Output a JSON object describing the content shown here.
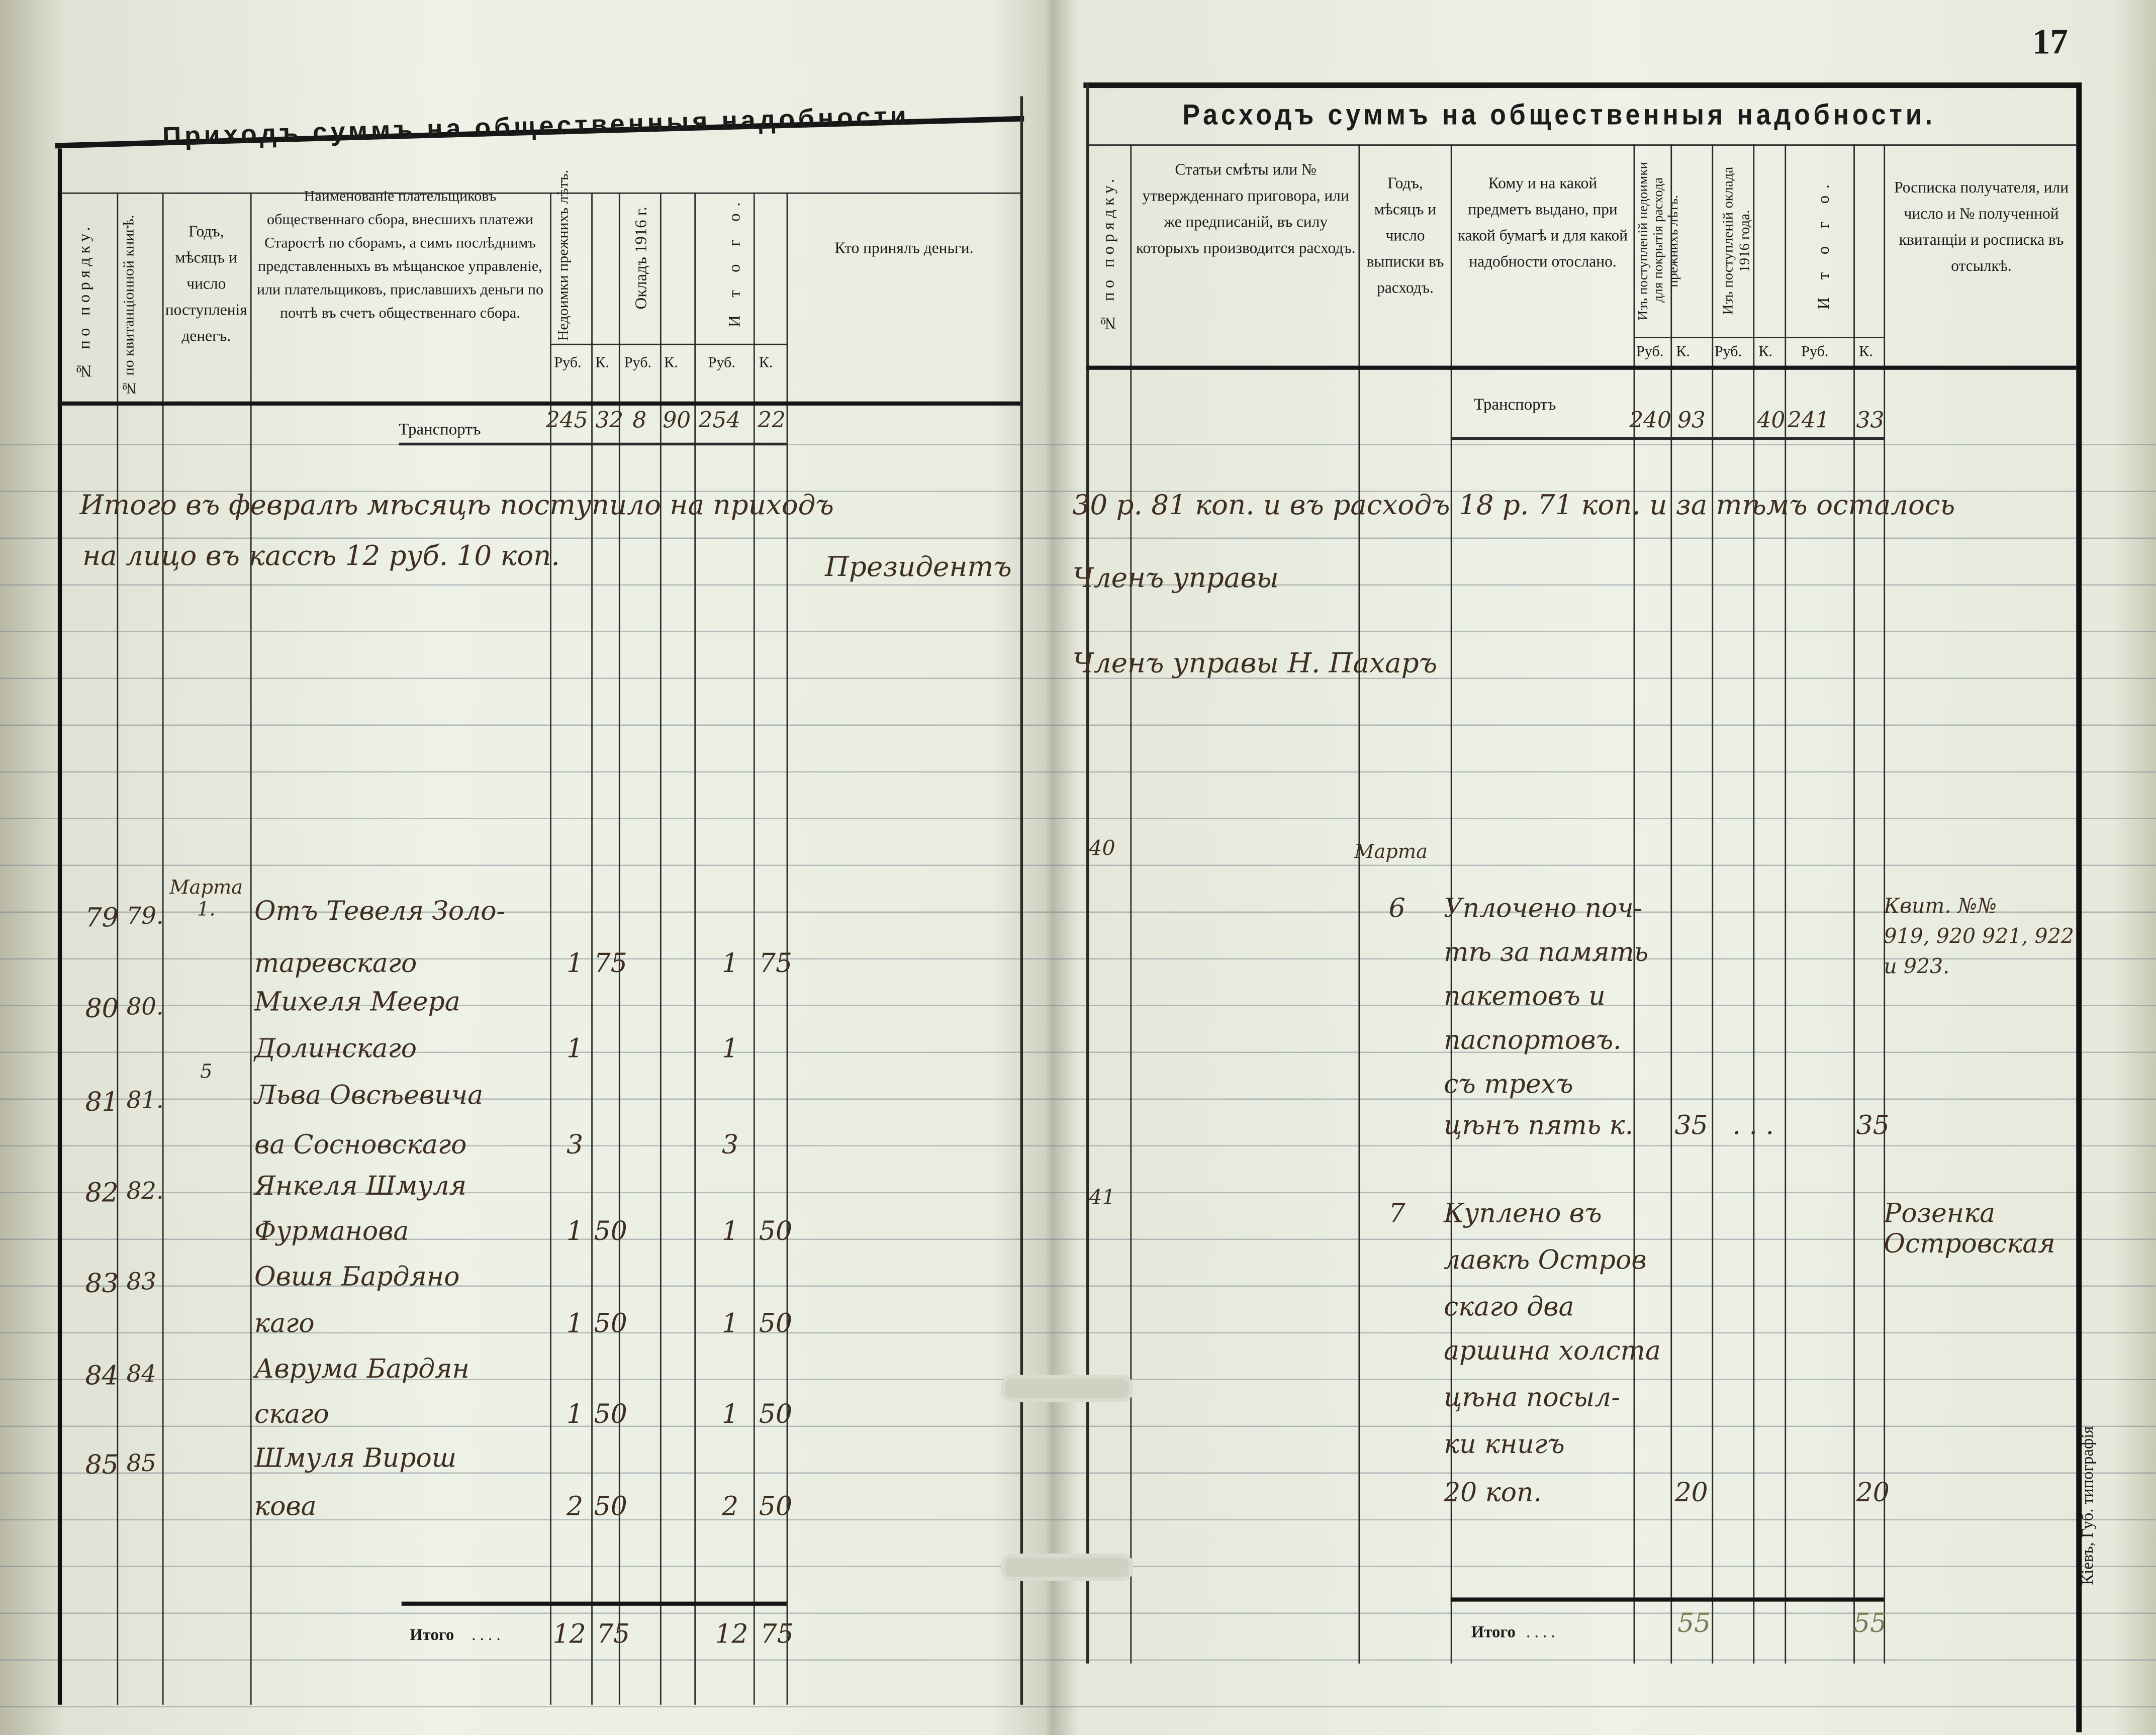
{
  "page_number": "17",
  "printer_mark": "Кіевъ, Губ. типографія",
  "income": {
    "title": "Приходъ суммъ на общественныя надобности.",
    "headers": {
      "no": "№ по порядку.",
      "receipt_no": "№ по квитанціонной книгѣ.",
      "date": "Годъ, мѣсяцъ и число поступленія денегъ.",
      "payer": "Наименованіе плательщиковъ общественнаго сбора, внесшихъ платежи Старостѣ по сборамъ, а симъ послѣднимъ представленныхъ въ мѣщанское управленіе, или плательщиковъ, приславшихъ деньги по почтѣ въ счетъ общественнаго сбора.",
      "arrears": "Недоимки прежнихъ лѣтъ.",
      "assessment": "Окладъ 1916 г.",
      "total": "И т о г о.",
      "received_by": "Кто принялъ деньги.",
      "rub": "Руб.",
      "kop": "К."
    },
    "transport": {
      "label": "Транспортъ",
      "arrears_rub": "245",
      "arrears_kop": "32",
      "assess_rub": "8",
      "assess_kop": "90",
      "total_rub": "254",
      "total_kop": "22"
    },
    "rows": [
      {
        "no": "79",
        "receipt": "79.",
        "date": "Марта 1.",
        "name": [
          "Отъ Тевеля Золо-",
          "таревскаго"
        ],
        "rub": "1",
        "kop": "75",
        "total_rub": "1",
        "total_kop": "75"
      },
      {
        "no": "80",
        "receipt": "80.",
        "date": "",
        "name": [
          "Михеля Меера",
          "Долинскаго"
        ],
        "rub": "1",
        "kop": "",
        "total_rub": "1",
        "total_kop": ""
      },
      {
        "no": "81",
        "receipt": "81.",
        "date": "5",
        "name": [
          "Льва Овсѣевича",
          "ва Сосновскаго"
        ],
        "rub": "3",
        "kop": "",
        "total_rub": "3",
        "total_kop": ""
      },
      {
        "no": "82",
        "receipt": "82.",
        "date": "",
        "name": [
          "Янкеля Шмуля",
          "Фурманова"
        ],
        "rub": "1",
        "kop": "50",
        "total_rub": "1",
        "total_kop": "50"
      },
      {
        "no": "83",
        "receipt": "83",
        "date": "",
        "name": [
          "Овшя Бардяно",
          "каго"
        ],
        "rub": "1",
        "kop": "50",
        "total_rub": "1",
        "total_kop": "50"
      },
      {
        "no": "84",
        "receipt": "84",
        "date": "",
        "name": [
          "Аврума Бардян",
          "скаго"
        ],
        "rub": "1",
        "kop": "50",
        "total_rub": "1",
        "total_kop": "50"
      },
      {
        "no": "85",
        "receipt": "85",
        "date": "",
        "name": [
          "Шмуля Вирош",
          "кова"
        ],
        "rub": "2",
        "kop": "50",
        "total_rub": "2",
        "total_kop": "50"
      }
    ],
    "itogo": {
      "label": "Итого",
      "rub": "12",
      "kop": "75",
      "total_rub": "12",
      "total_kop": "75"
    }
  },
  "expense": {
    "title": "Расходъ суммъ на общественныя надобности.",
    "headers": {
      "no": "№ по порядку.",
      "article": "Статьи смѣты или № утвержденнаго приговора, или же предписаній, въ силу которыхъ производится расходъ.",
      "date": "Годъ, мѣсяцъ и число выписки въ расходъ.",
      "to_whom": "Кому и на какой предметъ выдано, при какой бумагѣ и для какой надобности отослано.",
      "from_arrears": "Изъ поступленій недоимки для покрытія расхода прежнихъ лѣтъ.",
      "from_assessment": "Изъ поступленій оклада 1916 года.",
      "total": "И т о г о.",
      "signature": "Росписка получателя, или число и № полученной квитанціи и росписка въ отсылкѣ.",
      "rub": "Руб.",
      "kop": "К."
    },
    "transport": {
      "label": "Транспортъ",
      "arrears_rub": "240",
      "arrears_kop": "93",
      "assess_rub": "",
      "assess_kop": "40",
      "total_rub": "241",
      "total_kop": "33"
    },
    "rows": [
      {
        "no": "40",
        "date": [
          "Марта",
          "6"
        ],
        "desc": [
          "Уплочено поч-",
          "тѣ за память",
          "пакетовъ и",
          "паспортовъ.",
          "съ трехъ",
          "цѣнъ пять к."
        ],
        "rub": "",
        "kop": "35",
        "dots": ". . .",
        "total_kop": "35",
        "sign": [
          "Квит. №№",
          "919, 920 921, 922",
          "и 923."
        ]
      },
      {
        "no": "41",
        "date": [
          "",
          "7"
        ],
        "desc": [
          "Куплено въ",
          "лавкѣ Остров",
          "скаго два",
          "аршина холста",
          "цѣна посыл-",
          "ки книгъ",
          "20 коп."
        ],
        "rub": "",
        "kop": "20",
        "dots": "",
        "total_kop": "20",
        "sign": [
          "Розенка",
          "Островская"
        ]
      }
    ],
    "itogo": {
      "label": "Итого",
      "kop": "55",
      "total_kop": "55"
    }
  },
  "note": {
    "left": [
      "Итого въ февралѣ мѣсяцѣ поступило на приходъ",
      "на лицо въ кассѣ 12 руб. 10 коп."
    ],
    "right": [
      "30 р. 81 коп. и въ расходъ 18 р. 71 коп. и за тѣмъ осталось",
      "Членъ управы"
    ],
    "president": "Президентъ",
    "signature_line": "Членъ управы  Н. Пахаръ"
  }
}
